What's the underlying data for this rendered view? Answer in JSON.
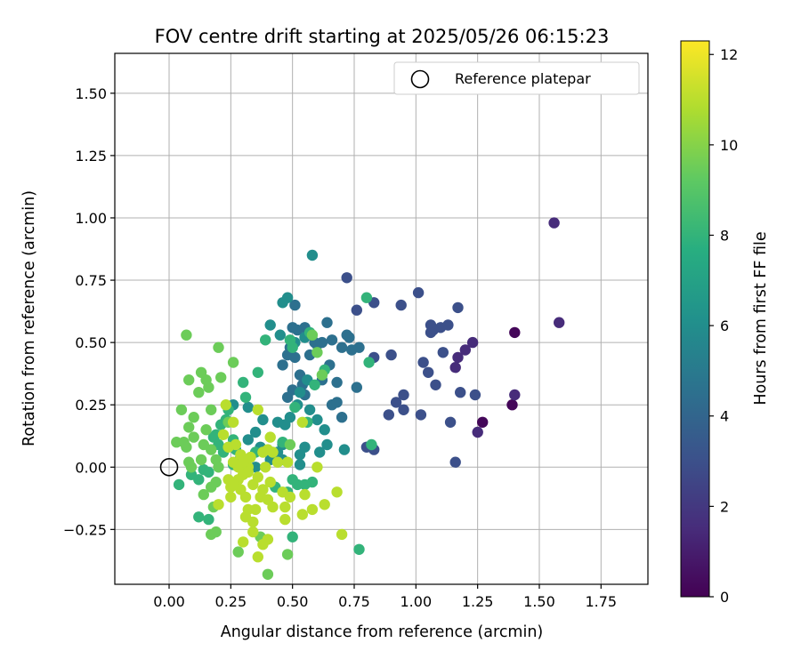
{
  "chart_data": {
    "type": "scatter",
    "title": "FOV centre drift starting at 2025/05/26 06:15:23",
    "xlabel": "Angular distance from reference (arcmin)",
    "ylabel": "Rotation from reference (arcmin)",
    "xlim": [
      -0.22,
      1.94
    ],
    "ylim": [
      -0.47,
      1.66
    ],
    "xticks": [
      0.0,
      0.25,
      0.5,
      0.75,
      1.0,
      1.25,
      1.5,
      1.75
    ],
    "xtick_labels": [
      "0.00",
      "0.25",
      "0.50",
      "0.75",
      "1.00",
      "1.25",
      "1.50",
      "1.75"
    ],
    "yticks": [
      -0.25,
      0.0,
      0.25,
      0.5,
      0.75,
      1.0,
      1.25,
      1.5
    ],
    "ytick_labels": [
      "−0.25",
      "0.00",
      "0.25",
      "0.50",
      "0.75",
      "1.00",
      "1.25",
      "1.50"
    ],
    "grid": true,
    "legend": {
      "position": "top-right",
      "entries": [
        {
          "label": "Reference platepar",
          "marker": "open-circle"
        }
      ]
    },
    "reference_point": {
      "x": 0.0,
      "y": 0.0
    },
    "colorbar": {
      "label": "Hours from first FF file",
      "colormap": "viridis",
      "range": [
        0,
        12.3
      ],
      "ticks": [
        0,
        2,
        4,
        6,
        8,
        10,
        12
      ],
      "tick_labels": [
        "0",
        "2",
        "4",
        "6",
        "8",
        "10",
        "12"
      ]
    },
    "series": [
      {
        "c": 0.2,
        "points": [
          [
            1.4,
            0.54
          ],
          [
            1.39,
            0.25
          ],
          [
            1.27,
            0.18
          ]
        ]
      },
      {
        "c": 1.5,
        "points": [
          [
            1.56,
            0.98
          ],
          [
            1.58,
            0.58
          ],
          [
            1.4,
            0.29
          ],
          [
            1.25,
            0.14
          ],
          [
            1.23,
            0.5
          ],
          [
            1.2,
            0.47
          ],
          [
            1.17,
            0.44
          ],
          [
            1.16,
            0.4
          ]
        ]
      },
      {
        "c": 3.0,
        "points": [
          [
            1.17,
            0.64
          ],
          [
            1.13,
            0.57
          ],
          [
            1.1,
            0.56
          ],
          [
            1.06,
            0.57
          ],
          [
            1.07,
            0.55
          ],
          [
            1.06,
            0.54
          ],
          [
            1.01,
            0.7
          ],
          [
            0.94,
            0.65
          ],
          [
            1.03,
            0.42
          ],
          [
            1.05,
            0.38
          ],
          [
            1.08,
            0.33
          ],
          [
            1.14,
            0.18
          ],
          [
            1.18,
            0.3
          ],
          [
            1.24,
            0.29
          ],
          [
            1.16,
            0.02
          ],
          [
            1.02,
            0.21
          ],
          [
            0.95,
            0.23
          ],
          [
            0.95,
            0.29
          ],
          [
            0.92,
            0.26
          ],
          [
            0.89,
            0.21
          ],
          [
            0.9,
            0.45
          ],
          [
            0.83,
            0.44
          ],
          [
            0.83,
            0.07
          ],
          [
            0.8,
            0.08
          ],
          [
            0.76,
            0.63
          ],
          [
            0.72,
            0.76
          ],
          [
            0.83,
            0.66
          ],
          [
            1.11,
            0.46
          ]
        ]
      },
      {
        "c": 4.5,
        "points": [
          [
            0.77,
            0.48
          ],
          [
            0.74,
            0.47
          ],
          [
            0.72,
            0.53
          ],
          [
            0.73,
            0.52
          ],
          [
            0.7,
            0.48
          ],
          [
            0.66,
            0.51
          ],
          [
            0.64,
            0.58
          ],
          [
            0.62,
            0.5
          ],
          [
            0.59,
            0.5
          ],
          [
            0.57,
            0.45
          ],
          [
            0.55,
            0.56
          ],
          [
            0.52,
            0.55
          ],
          [
            0.5,
            0.56
          ],
          [
            0.51,
            0.65
          ],
          [
            0.49,
            0.48
          ],
          [
            0.48,
            0.45
          ],
          [
            0.46,
            0.41
          ],
          [
            0.51,
            0.44
          ],
          [
            0.53,
            0.37
          ],
          [
            0.54,
            0.33
          ],
          [
            0.55,
            0.29
          ],
          [
            0.5,
            0.31
          ],
          [
            0.48,
            0.28
          ],
          [
            0.6,
            0.49
          ],
          [
            0.65,
            0.41
          ],
          [
            0.62,
            0.35
          ],
          [
            0.66,
            0.25
          ],
          [
            0.68,
            0.26
          ],
          [
            0.7,
            0.2
          ],
          [
            0.76,
            0.32
          ],
          [
            0.68,
            0.34
          ]
        ]
      },
      {
        "c": 6.0,
        "points": [
          [
            0.58,
            0.85
          ],
          [
            0.48,
            0.68
          ],
          [
            0.46,
            0.66
          ],
          [
            0.41,
            0.57
          ],
          [
            0.45,
            0.53
          ],
          [
            0.51,
            0.5
          ],
          [
            0.55,
            0.52
          ],
          [
            0.56,
            0.35
          ],
          [
            0.53,
            0.3
          ],
          [
            0.52,
            0.25
          ],
          [
            0.49,
            0.2
          ],
          [
            0.47,
            0.17
          ],
          [
            0.44,
            0.18
          ],
          [
            0.57,
            0.23
          ],
          [
            0.6,
            0.19
          ],
          [
            0.63,
            0.15
          ],
          [
            0.64,
            0.09
          ],
          [
            0.61,
            0.06
          ],
          [
            0.55,
            0.08
          ],
          [
            0.53,
            0.01
          ],
          [
            0.53,
            0.05
          ],
          [
            0.46,
            0.09
          ],
          [
            0.44,
            0.06
          ],
          [
            0.41,
            0.03
          ],
          [
            0.37,
            0.08
          ],
          [
            0.35,
            0.0
          ],
          [
            0.29,
            0.04
          ],
          [
            0.29,
            0.02
          ],
          [
            0.32,
            0.11
          ],
          [
            0.35,
            0.14
          ],
          [
            0.38,
            0.19
          ],
          [
            0.32,
            0.24
          ],
          [
            0.26,
            0.25
          ],
          [
            0.71,
            0.07
          ],
          [
            0.46,
            0.03
          ]
        ]
      },
      {
        "c": 8.0,
        "points": [
          [
            0.8,
            0.68
          ],
          [
            0.81,
            0.42
          ],
          [
            0.82,
            0.09
          ],
          [
            0.77,
            -0.33
          ],
          [
            0.63,
            0.39
          ],
          [
            0.59,
            0.33
          ],
          [
            0.57,
            0.54
          ],
          [
            0.5,
            0.48
          ],
          [
            0.49,
            0.51
          ],
          [
            0.51,
            0.24
          ],
          [
            0.56,
            0.18
          ],
          [
            0.58,
            -0.06
          ],
          [
            0.55,
            -0.07
          ],
          [
            0.5,
            -0.05
          ],
          [
            0.46,
            0.1
          ],
          [
            0.39,
            0.51
          ],
          [
            0.36,
            0.38
          ],
          [
            0.31,
            0.28
          ],
          [
            0.3,
            0.34
          ],
          [
            0.24,
            0.23
          ],
          [
            0.26,
            0.11
          ],
          [
            0.23,
            0.19
          ],
          [
            0.21,
            0.17
          ],
          [
            0.19,
            0.13
          ],
          [
            0.18,
            0.12
          ],
          [
            0.22,
            0.06
          ],
          [
            0.2,
            0.09
          ],
          [
            0.27,
            0.07
          ],
          [
            0.35,
            0.06
          ],
          [
            0.26,
            0.01
          ],
          [
            0.14,
            -0.01
          ],
          [
            0.16,
            -0.02
          ],
          [
            0.12,
            -0.05
          ],
          [
            0.09,
            -0.03
          ],
          [
            0.04,
            -0.07
          ],
          [
            0.12,
            -0.2
          ],
          [
            0.16,
            -0.21
          ],
          [
            0.5,
            -0.28
          ],
          [
            0.52,
            -0.07
          ],
          [
            0.48,
            -0.1
          ],
          [
            0.43,
            -0.08
          ]
        ]
      },
      {
        "c": 9.5,
        "points": [
          [
            0.07,
            0.53
          ],
          [
            0.2,
            0.48
          ],
          [
            0.26,
            0.42
          ],
          [
            0.21,
            0.36
          ],
          [
            0.13,
            0.38
          ],
          [
            0.15,
            0.35
          ],
          [
            0.08,
            0.35
          ],
          [
            0.16,
            0.32
          ],
          [
            0.12,
            0.3
          ],
          [
            0.05,
            0.23
          ],
          [
            0.17,
            0.23
          ],
          [
            0.08,
            0.16
          ],
          [
            0.1,
            0.12
          ],
          [
            0.07,
            0.08
          ],
          [
            0.06,
            0.1
          ],
          [
            0.03,
            0.1
          ],
          [
            0.08,
            0.02
          ],
          [
            0.09,
            0.0
          ],
          [
            0.13,
            0.03
          ],
          [
            0.14,
            0.09
          ],
          [
            0.15,
            0.15
          ],
          [
            0.1,
            0.2
          ],
          [
            0.17,
            0.07
          ],
          [
            0.19,
            0.03
          ],
          [
            0.2,
            0.0
          ],
          [
            0.17,
            -0.08
          ],
          [
            0.19,
            -0.06
          ],
          [
            0.14,
            -0.11
          ],
          [
            0.18,
            -0.16
          ],
          [
            0.17,
            -0.27
          ],
          [
            0.19,
            -0.26
          ],
          [
            0.28,
            -0.34
          ],
          [
            0.37,
            -0.28
          ],
          [
            0.4,
            -0.43
          ],
          [
            0.48,
            -0.35
          ],
          [
            0.24,
            0.18
          ],
          [
            0.49,
            0.09
          ],
          [
            0.58,
            0.53
          ],
          [
            0.6,
            0.46
          ],
          [
            0.62,
            0.37
          ]
        ]
      },
      {
        "c": 11.0,
        "points": [
          [
            0.23,
            0.25
          ],
          [
            0.26,
            0.18
          ],
          [
            0.24,
            0.08
          ],
          [
            0.22,
            0.13
          ],
          [
            0.27,
            0.09
          ],
          [
            0.29,
            0.05
          ],
          [
            0.32,
            0.0
          ],
          [
            0.3,
            -0.03
          ],
          [
            0.28,
            -0.05
          ],
          [
            0.29,
            -0.09
          ],
          [
            0.31,
            -0.12
          ],
          [
            0.25,
            -0.08
          ],
          [
            0.25,
            -0.12
          ],
          [
            0.26,
            -0.07
          ],
          [
            0.24,
            -0.05
          ],
          [
            0.2,
            -0.15
          ],
          [
            0.32,
            -0.17
          ],
          [
            0.34,
            -0.22
          ],
          [
            0.31,
            -0.2
          ],
          [
            0.3,
            -0.3
          ],
          [
            0.34,
            -0.26
          ],
          [
            0.38,
            -0.31
          ],
          [
            0.36,
            -0.36
          ],
          [
            0.4,
            -0.29
          ],
          [
            0.35,
            -0.17
          ],
          [
            0.37,
            -0.12
          ],
          [
            0.34,
            -0.07
          ],
          [
            0.36,
            -0.04
          ],
          [
            0.38,
            -0.09
          ],
          [
            0.4,
            -0.13
          ],
          [
            0.41,
            -0.06
          ],
          [
            0.39,
            0.0
          ],
          [
            0.42,
            0.06
          ],
          [
            0.41,
            0.12
          ],
          [
            0.36,
            0.23
          ],
          [
            0.46,
            -0.1
          ],
          [
            0.47,
            -0.16
          ],
          [
            0.47,
            -0.21
          ],
          [
            0.42,
            -0.16
          ],
          [
            0.49,
            -0.12
          ],
          [
            0.54,
            -0.19
          ],
          [
            0.55,
            -0.11
          ],
          [
            0.58,
            -0.17
          ],
          [
            0.63,
            -0.15
          ],
          [
            0.68,
            -0.1
          ],
          [
            0.7,
            -0.27
          ],
          [
            0.6,
            0.0
          ],
          [
            0.54,
            0.18
          ],
          [
            0.44,
            0.02
          ],
          [
            0.48,
            0.02
          ],
          [
            0.4,
            0.07
          ],
          [
            0.33,
            0.04
          ],
          [
            0.28,
            0.0
          ],
          [
            0.3,
            0.02
          ],
          [
            0.26,
            0.02
          ],
          [
            0.32,
            -0.02
          ],
          [
            0.38,
            0.06
          ]
        ]
      }
    ]
  }
}
